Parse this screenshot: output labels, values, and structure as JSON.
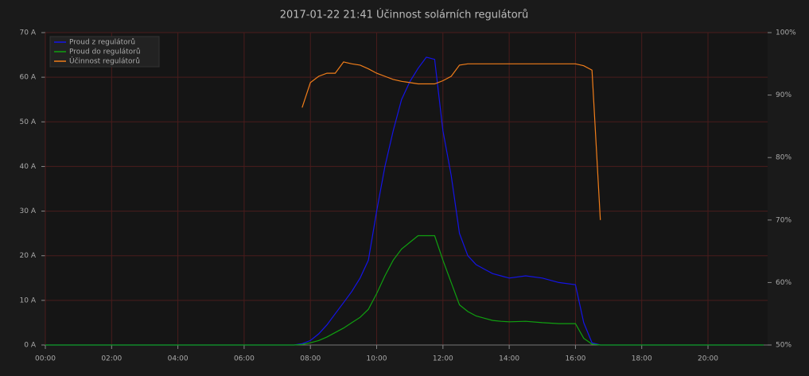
{
  "chart_data": {
    "type": "line",
    "title": "2017-01-22 21:41  Účinnost solárních regulátorů",
    "x": [
      0,
      7.5,
      7.75,
      8,
      8.25,
      8.5,
      8.75,
      9,
      9.25,
      9.5,
      9.75,
      10,
      10.25,
      10.5,
      10.75,
      11,
      11.25,
      11.5,
      11.75,
      12,
      12.25,
      12.5,
      12.75,
      13,
      13.25,
      13.5,
      13.75,
      14,
      14.5,
      15,
      15.5,
      16,
      16.25,
      16.5,
      16.75,
      17,
      21.68
    ],
    "series": [
      {
        "name": "Proud z regulátorů",
        "color": "#1414e6",
        "values": [
          0,
          0,
          0.3,
          1,
          2.5,
          4.5,
          7,
          9.5,
          12,
          15,
          19,
          30,
          40,
          48,
          55,
          59,
          62,
          64.5,
          64,
          48,
          38,
          25,
          20,
          18,
          17,
          16,
          15.5,
          15,
          15.5,
          15,
          14,
          13.5,
          5,
          0.5,
          0,
          0,
          0
        ]
      },
      {
        "name": "Proud do regulátorů",
        "color": "#10a010",
        "values": [
          0,
          0,
          0.1,
          0.5,
          1,
          1.8,
          2.8,
          3.8,
          5,
          6.2,
          8,
          11.5,
          15.5,
          19,
          21.5,
          23,
          24.5,
          24.5,
          24.5,
          19,
          14,
          9,
          7.5,
          6.5,
          6,
          5.5,
          5.3,
          5.2,
          5.3,
          5,
          4.8,
          4.8,
          1.5,
          0.2,
          0,
          0,
          0
        ]
      },
      {
        "name": "Účinnost regulátorů",
        "color": "#f07d1a",
        "axis": "y2",
        "values": [
          null,
          null,
          88,
          92,
          93,
          93.5,
          93.5,
          95.3,
          95,
          94.8,
          94.2,
          93.5,
          93,
          92.5,
          92.2,
          92,
          91.8,
          91.8,
          91.8,
          92.3,
          93,
          94.8,
          95,
          95,
          95,
          95,
          95,
          95,
          95,
          95,
          95,
          95,
          94.7,
          94,
          70,
          null,
          null
        ]
      }
    ],
    "xlim": [
      0,
      21.8
    ],
    "xticks": [
      {
        "value": 0,
        "label": "00:00"
      },
      {
        "value": 2,
        "label": "02:00"
      },
      {
        "value": 4,
        "label": "04:00"
      },
      {
        "value": 6,
        "label": "06:00"
      },
      {
        "value": 8,
        "label": "08:00"
      },
      {
        "value": 10,
        "label": "10:00"
      },
      {
        "value": 12,
        "label": "12:00"
      },
      {
        "value": 14,
        "label": "14:00"
      },
      {
        "value": 16,
        "label": "16:00"
      },
      {
        "value": 18,
        "label": "18:00"
      },
      {
        "value": 20,
        "label": "20:00"
      }
    ],
    "ylim": [
      0,
      70
    ],
    "yticks": [
      {
        "value": 0,
        "label": "0 A"
      },
      {
        "value": 10,
        "label": "10 A"
      },
      {
        "value": 20,
        "label": "20 A"
      },
      {
        "value": 30,
        "label": "30 A"
      },
      {
        "value": 40,
        "label": "40 A"
      },
      {
        "value": 50,
        "label": "50 A"
      },
      {
        "value": 60,
        "label": "60 A"
      },
      {
        "value": 70,
        "label": "70 A"
      }
    ],
    "y2lim": [
      50,
      100
    ],
    "y2ticks": [
      {
        "value": 50,
        "label": "50%"
      },
      {
        "value": 60,
        "label": "60%"
      },
      {
        "value": 70,
        "label": "70%"
      },
      {
        "value": 80,
        "label": "80%"
      },
      {
        "value": 90,
        "label": "90%"
      },
      {
        "value": 100,
        "label": "100%"
      }
    ],
    "grid": true,
    "legend": "top-left"
  }
}
